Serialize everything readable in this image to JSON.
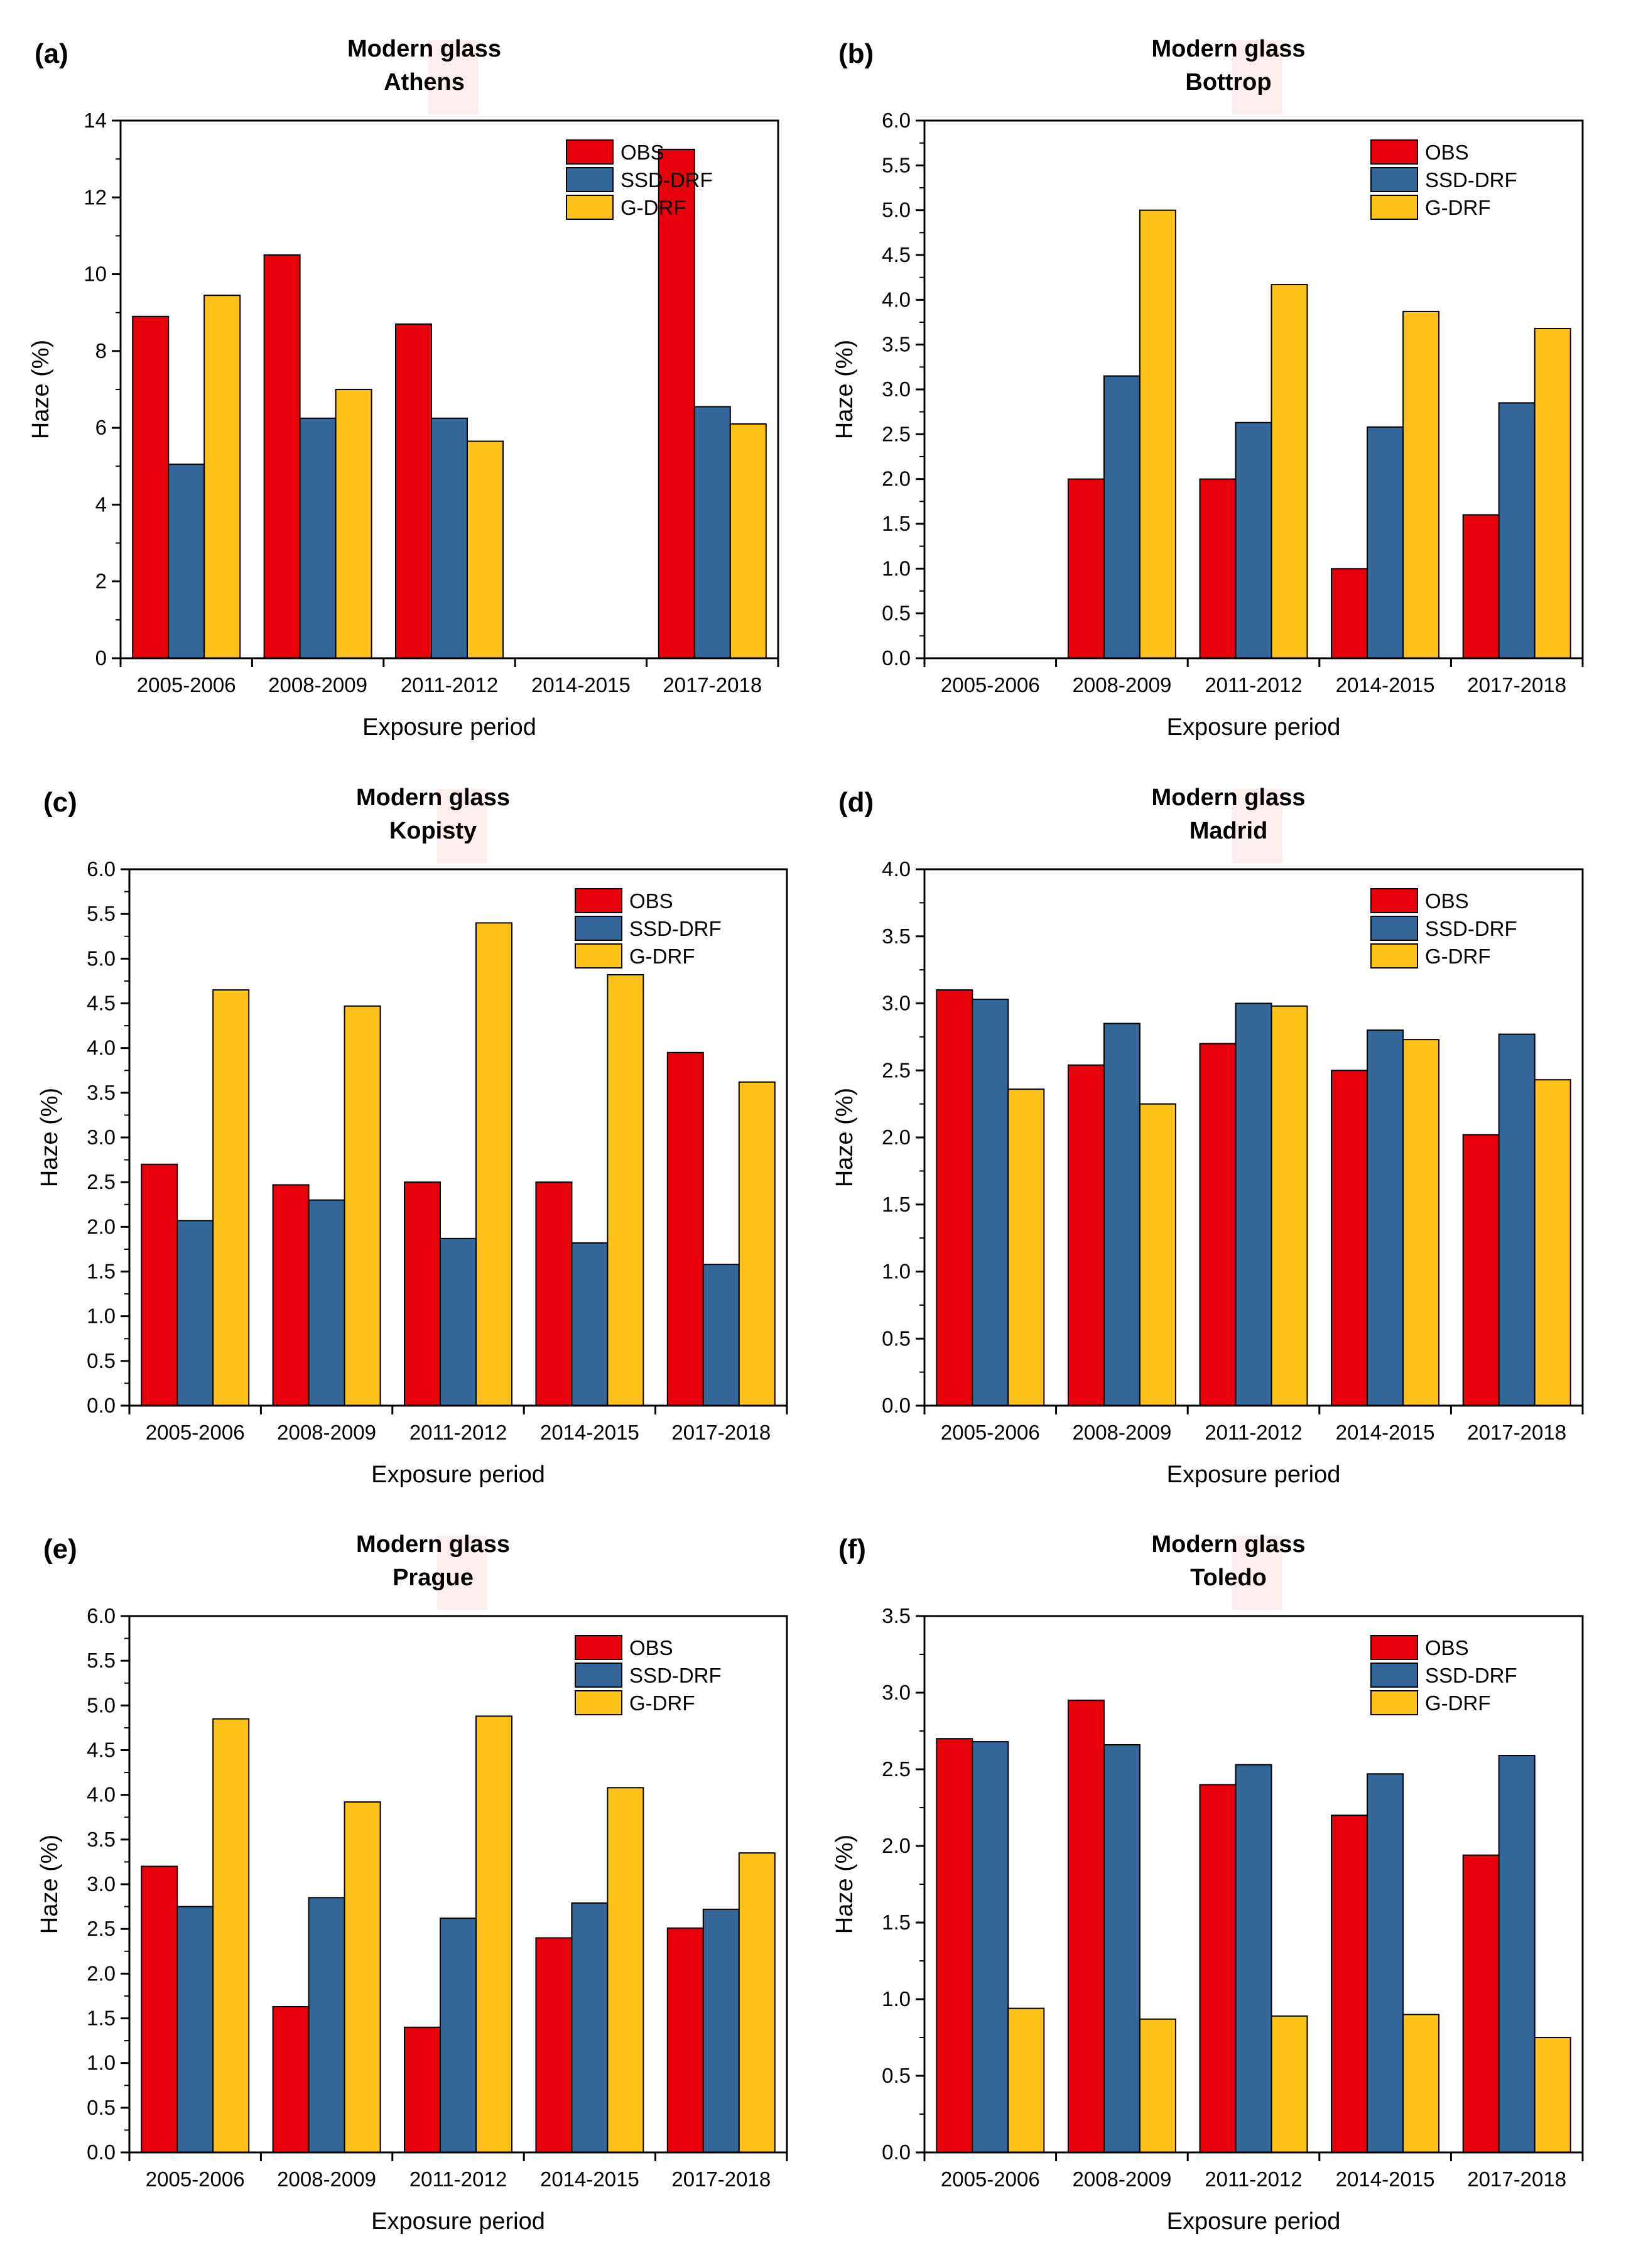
{
  "colors": {
    "OBS": "#e8000b",
    "SSD-DRF": "#336699",
    "G-DRF": "#ffc21a",
    "axis": "#000000",
    "watermark": "#fdeeee"
  },
  "chart_data": [
    {
      "panel_label": "(a)",
      "title_line1": "Modern glass",
      "title_line2": "Athens",
      "type": "bar",
      "categories": [
        "2005-2006",
        "2008-2009",
        "2011-2012",
        "2014-2015",
        "2017-2018"
      ],
      "series": [
        {
          "name": "OBS",
          "values": [
            8.9,
            10.5,
            8.7,
            null,
            13.25
          ]
        },
        {
          "name": "SSD-DRF",
          "values": [
            5.05,
            6.25,
            6.25,
            null,
            6.55
          ]
        },
        {
          "name": "G-DRF",
          "values": [
            9.45,
            7.0,
            5.65,
            null,
            6.1
          ]
        }
      ],
      "ylim": [
        0,
        14
      ],
      "yticks": [
        "0",
        "2",
        "4",
        "6",
        "8",
        "10",
        "12",
        "14"
      ],
      "xlabel": "Exposure period",
      "ylabel": "Haze (%)",
      "legend_position": "top-right"
    },
    {
      "panel_label": "(b)",
      "title_line1": "Modern glass",
      "title_line2": "Bottrop",
      "type": "bar",
      "categories": [
        "2005-2006",
        "2008-2009",
        "2011-2012",
        "2014-2015",
        "2017-2018"
      ],
      "series": [
        {
          "name": "OBS",
          "values": [
            null,
            2.0,
            2.0,
            1.0,
            1.6
          ]
        },
        {
          "name": "SSD-DRF",
          "values": [
            null,
            3.15,
            2.63,
            2.58,
            2.85
          ]
        },
        {
          "name": "G-DRF",
          "values": [
            null,
            5.0,
            4.17,
            3.87,
            3.68
          ]
        }
      ],
      "ylim": [
        0,
        6
      ],
      "yticks": [
        "0.0",
        "0.5",
        "1.0",
        "1.5",
        "2.0",
        "2.5",
        "3.0",
        "3.5",
        "4.0",
        "4.5",
        "5.0",
        "5.5",
        "6.0"
      ],
      "xlabel": "Exposure period",
      "ylabel": "Haze (%)",
      "legend_position": "top-right"
    },
    {
      "panel_label": "(c)",
      "title_line1": "Modern glass",
      "title_line2": "Kopisty",
      "type": "bar",
      "categories": [
        "2005-2006",
        "2008-2009",
        "2011-2012",
        "2014-2015",
        "2017-2018"
      ],
      "series": [
        {
          "name": "OBS",
          "values": [
            2.7,
            2.47,
            2.5,
            2.5,
            3.95
          ]
        },
        {
          "name": "SSD-DRF",
          "values": [
            2.07,
            2.3,
            1.87,
            1.82,
            1.58
          ]
        },
        {
          "name": "G-DRF",
          "values": [
            4.65,
            4.47,
            5.4,
            4.82,
            3.62
          ]
        }
      ],
      "ylim": [
        0,
        6
      ],
      "yticks": [
        "0.0",
        "0.5",
        "1.0",
        "1.5",
        "2.0",
        "2.5",
        "3.0",
        "3.5",
        "4.0",
        "4.5",
        "5.0",
        "5.5",
        "6.0"
      ],
      "xlabel": "Exposure period",
      "ylabel": "Haze (%)",
      "legend_position": "top-right"
    },
    {
      "panel_label": "(d)",
      "title_line1": "Modern glass",
      "title_line2": "Madrid",
      "type": "bar",
      "categories": [
        "2005-2006",
        "2008-2009",
        "2011-2012",
        "2014-2015",
        "2017-2018"
      ],
      "series": [
        {
          "name": "OBS",
          "values": [
            3.1,
            2.54,
            2.7,
            2.5,
            2.02
          ]
        },
        {
          "name": "SSD-DRF",
          "values": [
            3.03,
            2.85,
            3.0,
            2.8,
            2.77
          ]
        },
        {
          "name": "G-DRF",
          "values": [
            2.36,
            2.25,
            2.98,
            2.73,
            2.43
          ]
        }
      ],
      "ylim": [
        0,
        4
      ],
      "yticks": [
        "0.0",
        "0.5",
        "1.0",
        "1.5",
        "2.0",
        "2.5",
        "3.0",
        "3.5",
        "4.0"
      ],
      "xlabel": "Exposure period",
      "ylabel": "Haze (%)",
      "legend_position": "top-right"
    },
    {
      "panel_label": "(e)",
      "title_line1": "Modern glass",
      "title_line2": "Prague",
      "type": "bar",
      "categories": [
        "2005-2006",
        "2008-2009",
        "2011-2012",
        "2014-2015",
        "2017-2018"
      ],
      "series": [
        {
          "name": "OBS",
          "values": [
            3.2,
            1.63,
            1.4,
            2.4,
            2.51
          ]
        },
        {
          "name": "SSD-DRF",
          "values": [
            2.75,
            2.85,
            2.62,
            2.79,
            2.72
          ]
        },
        {
          "name": "G-DRF",
          "values": [
            4.85,
            3.92,
            4.88,
            4.08,
            3.35
          ]
        }
      ],
      "ylim": [
        0,
        6
      ],
      "yticks": [
        "0.0",
        "0.5",
        "1.0",
        "1.5",
        "2.0",
        "2.5",
        "3.0",
        "3.5",
        "4.0",
        "4.5",
        "5.0",
        "5.5",
        "6.0"
      ],
      "xlabel": "Exposure period",
      "ylabel": "Haze (%)",
      "legend_position": "top-right"
    },
    {
      "panel_label": "(f)",
      "title_line1": "Modern glass",
      "title_line2": "Toledo",
      "type": "bar",
      "categories": [
        "2005-2006",
        "2008-2009",
        "2011-2012",
        "2014-2015",
        "2017-2018"
      ],
      "series": [
        {
          "name": "OBS",
          "values": [
            2.7,
            2.95,
            2.4,
            2.2,
            1.94
          ]
        },
        {
          "name": "SSD-DRF",
          "values": [
            2.68,
            2.66,
            2.53,
            2.47,
            2.59
          ]
        },
        {
          "name": "G-DRF",
          "values": [
            0.94,
            0.87,
            0.89,
            0.9,
            0.75
          ]
        }
      ],
      "ylim": [
        0,
        3.5
      ],
      "yticks": [
        "0.0",
        "0.5",
        "1.0",
        "1.5",
        "2.0",
        "2.5",
        "3.0",
        "3.5"
      ],
      "xlabel": "Exposure period",
      "ylabel": "Haze (%)",
      "legend_position": "top-right"
    }
  ]
}
